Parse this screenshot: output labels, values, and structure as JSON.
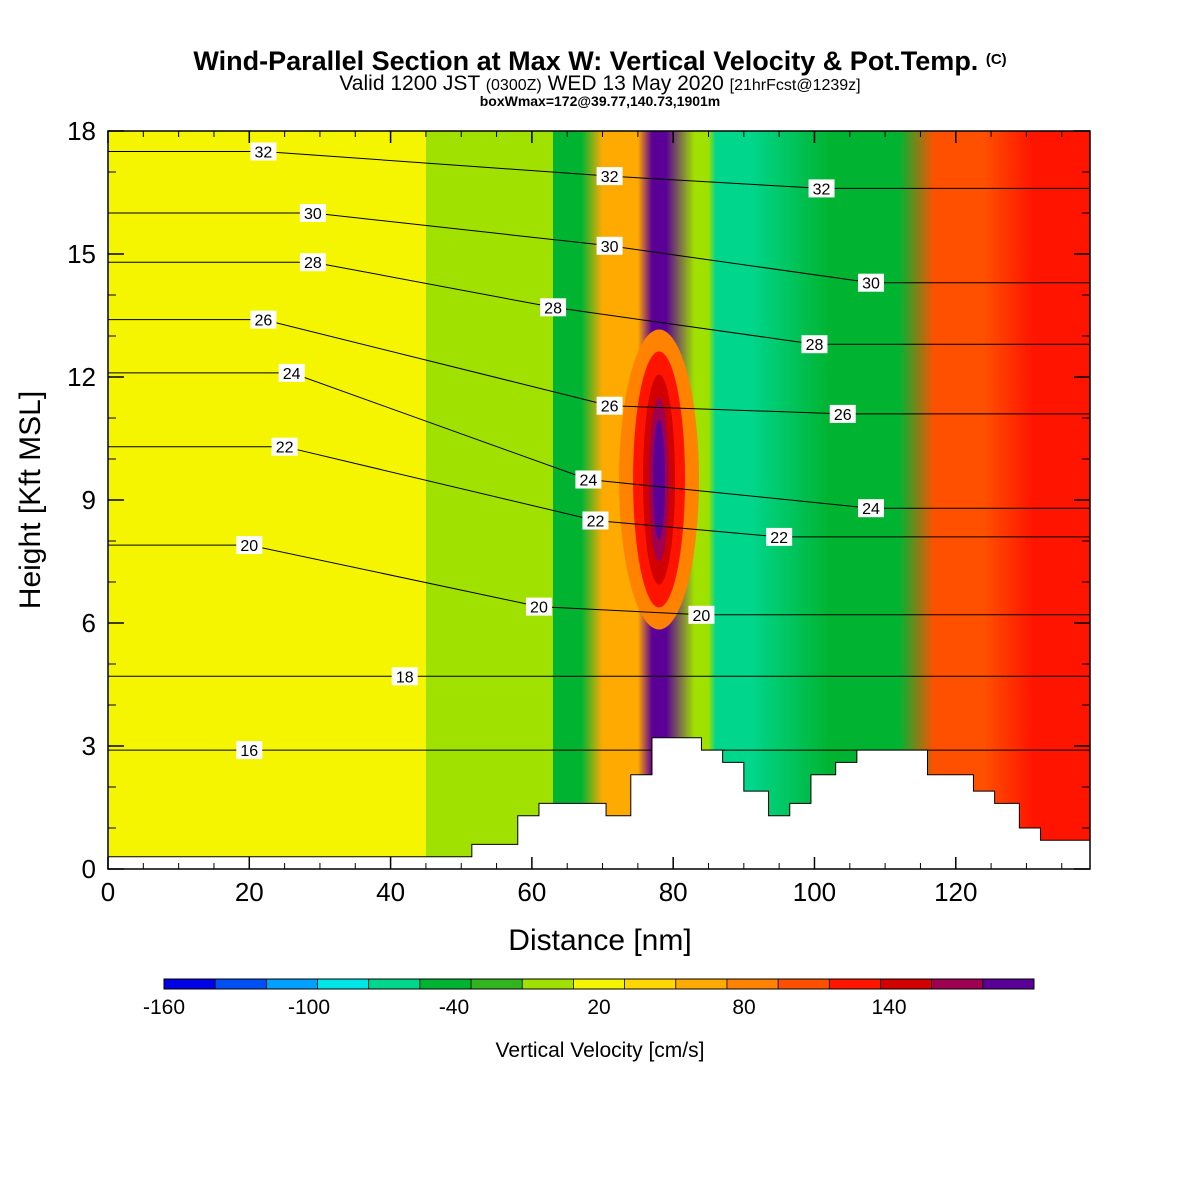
{
  "chart_data": {
    "type": "heatmap",
    "title": "Wind-Parallel Section at Max W: Vertical Velocity & Pot.Temp.",
    "title_mark": "(C)",
    "subtitle_main": "Valid 1200 JST",
    "subtitle_utc": "(0300Z)",
    "subtitle_date": "WED 13 May 2020",
    "subtitle_fcst": "[21hrFcst@1239z]",
    "subtitle2": "boxWmax=172@39.77,140.73,1901m",
    "xlabel": "Distance [nm]",
    "ylabel": "Height [Kft MSL]",
    "xlim": [
      0,
      139
    ],
    "ylim": [
      0,
      18
    ],
    "x_ticks": [
      "0",
      "20",
      "40",
      "60",
      "80",
      "100",
      "120"
    ],
    "y_ticks": [
      "0",
      "3",
      "6",
      "9",
      "12",
      "15",
      "18"
    ],
    "colorbar": {
      "label": "Vertical Velocity [cm/s]",
      "range": [
        -160,
        200
      ],
      "step": 20,
      "tick_labels": [
        "-160",
        "-100",
        "-40",
        "20",
        "80",
        "140"
      ],
      "colors": [
        "#0000e6",
        "#0050f5",
        "#00a0ff",
        "#00e6e6",
        "#00d68c",
        "#00b432",
        "#32b41e",
        "#a0e100",
        "#f5f500",
        "#ffd700",
        "#ffaa00",
        "#ff8200",
        "#ff5000",
        "#ff1400",
        "#d20000",
        "#a00050",
        "#5a0096"
      ]
    },
    "field_bands_w": [
      {
        "x_range": [
          0,
          45
        ],
        "w_cm_s": 10
      },
      {
        "x_range": [
          45,
          63
        ],
        "w_cm_s": -20
      },
      {
        "x_range": [
          63,
          67
        ],
        "w_cm_s": -45
      },
      {
        "x_range": [
          70,
          75
        ],
        "w_cm_s": 50
      },
      {
        "x_range": [
          77,
          79
        ],
        "w_cm_s": 172
      },
      {
        "x_range": [
          83,
          85
        ],
        "w_cm_s": -20
      },
      {
        "x_range": [
          86,
          91
        ],
        "w_cm_s": -70
      },
      {
        "x_range": [
          102,
          112
        ],
        "w_cm_s": -45
      },
      {
        "x_range": [
          117,
          124
        ],
        "w_cm_s": 80
      },
      {
        "x_range": [
          131,
          134
        ],
        "w_cm_s": 110
      }
    ],
    "theta_contours": {
      "series_name": "Pot.Temp.",
      "labeled_levels": [
        {
          "label": "16",
          "x": 20,
          "y": 2.9
        },
        {
          "label": "18",
          "x": 42,
          "y": 4.7
        },
        {
          "label": "20",
          "x": 20,
          "y": 7.9
        },
        {
          "label": "20",
          "x": 61,
          "y": 6.4
        },
        {
          "label": "20",
          "x": 84,
          "y": 6.2
        },
        {
          "label": "22",
          "x": 25,
          "y": 10.3
        },
        {
          "label": "22",
          "x": 69,
          "y": 8.5
        },
        {
          "label": "22",
          "x": 95,
          "y": 8.1
        },
        {
          "label": "24",
          "x": 26,
          "y": 12.1
        },
        {
          "label": "24",
          "x": 68,
          "y": 9.5
        },
        {
          "label": "24",
          "x": 108,
          "y": 8.8
        },
        {
          "label": "26",
          "x": 22,
          "y": 13.4
        },
        {
          "label": "26",
          "x": 71,
          "y": 11.3
        },
        {
          "label": "26",
          "x": 104,
          "y": 11.1
        },
        {
          "label": "28",
          "x": 29,
          "y": 14.8
        },
        {
          "label": "28",
          "x": 63,
          "y": 13.7
        },
        {
          "label": "28",
          "x": 100,
          "y": 12.8
        },
        {
          "label": "30",
          "x": 29,
          "y": 16.0
        },
        {
          "label": "30",
          "x": 71,
          "y": 15.2
        },
        {
          "label": "30",
          "x": 108,
          "y": 14.3
        },
        {
          "label": "32",
          "x": 22,
          "y": 17.5
        },
        {
          "label": "32",
          "x": 71,
          "y": 16.9
        },
        {
          "label": "32",
          "x": 101,
          "y": 16.6
        }
      ]
    },
    "terrain_kft": [
      [
        0,
        0.3
      ],
      [
        51.5,
        0.3
      ],
      [
        51.5,
        0.6
      ],
      [
        58,
        0.6
      ],
      [
        58,
        1.3
      ],
      [
        61,
        1.3
      ],
      [
        61,
        1.6
      ],
      [
        70.5,
        1.6
      ],
      [
        70.5,
        1.3
      ],
      [
        74,
        1.3
      ],
      [
        74,
        2.3
      ],
      [
        77,
        2.3
      ],
      [
        77,
        3.2
      ],
      [
        84,
        3.2
      ],
      [
        84,
        2.9
      ],
      [
        87,
        2.9
      ],
      [
        87,
        2.6
      ],
      [
        90,
        2.6
      ],
      [
        90,
        1.9
      ],
      [
        93.5,
        1.9
      ],
      [
        93.5,
        1.3
      ],
      [
        96.5,
        1.3
      ],
      [
        96.5,
        1.6
      ],
      [
        99.5,
        1.6
      ],
      [
        99.5,
        2.3
      ],
      [
        103,
        2.3
      ],
      [
        103,
        2.6
      ],
      [
        106,
        2.6
      ],
      [
        106,
        2.9
      ],
      [
        116,
        2.9
      ],
      [
        116,
        2.3
      ],
      [
        122.5,
        2.3
      ],
      [
        122.5,
        1.9
      ],
      [
        125.5,
        1.9
      ],
      [
        125.5,
        1.6
      ],
      [
        129,
        1.6
      ],
      [
        129,
        1.0
      ],
      [
        132,
        1.0
      ],
      [
        132,
        0.7
      ],
      [
        139,
        0.7
      ]
    ]
  }
}
